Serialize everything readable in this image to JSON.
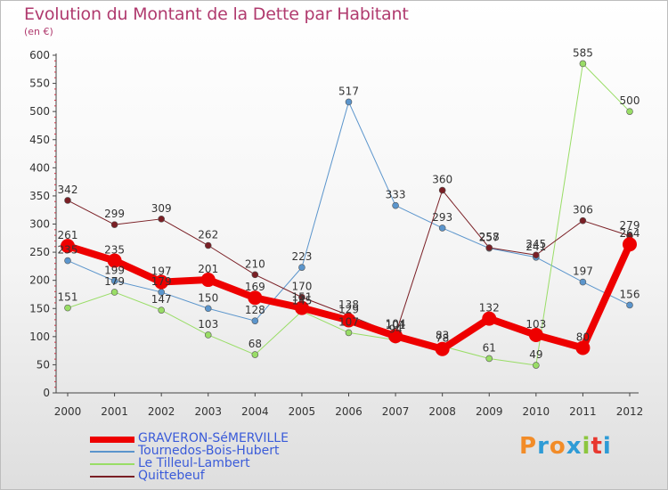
{
  "title": "Evolution du Montant de la Dette par Habitant",
  "subtitle": "(en €)",
  "brand": {
    "letters": [
      "P",
      "r",
      "o",
      "x",
      "i",
      "t",
      "i"
    ],
    "colors": [
      "#f28c28",
      "#2e9bd6",
      "#f28c28",
      "#2e9bd6",
      "#8cc63f",
      "#e8382f",
      "#2e9bd6"
    ]
  },
  "chart_data": {
    "type": "line",
    "x": [
      "2000",
      "2001",
      "2002",
      "2003",
      "2004",
      "2005",
      "2006",
      "2007",
      "2008",
      "2009",
      "2010",
      "2011",
      "2012"
    ],
    "ylim": [
      0,
      600
    ],
    "yticks": [
      0,
      50,
      100,
      150,
      200,
      250,
      300,
      350,
      400,
      450,
      500,
      550,
      600
    ],
    "grid": false,
    "legend_position": "bottom-left",
    "series": [
      {
        "name": "GRAVERON-SéMERVILLE",
        "color": "#ee0000",
        "width": 8,
        "dot": 8,
        "values": [
          261,
          235,
          197,
          201,
          169,
          151,
          129,
          101,
          78,
          132,
          103,
          80,
          264
        ]
      },
      {
        "name": "Tournedos-Bois-Hubert",
        "color": "#5b95cc",
        "width": 1,
        "dot": 3.5,
        "values": [
          235,
          199,
          179,
          150,
          128,
          223,
          517,
          333,
          293,
          257,
          241,
          197,
          156
        ]
      },
      {
        "name": "Le Tilleul-Lambert",
        "color": "#99dd66",
        "width": 1,
        "dot": 3.5,
        "values": [
          151,
          179,
          147,
          103,
          68,
          145,
          107,
          94,
          83,
          61,
          49,
          585,
          500
        ]
      },
      {
        "name": "Quittebeuf",
        "color": "#7a1f25",
        "width": 1,
        "dot": 3.5,
        "values": [
          342,
          299,
          309,
          262,
          210,
          170,
          138,
          104,
          360,
          258,
          245,
          306,
          279
        ]
      }
    ]
  }
}
